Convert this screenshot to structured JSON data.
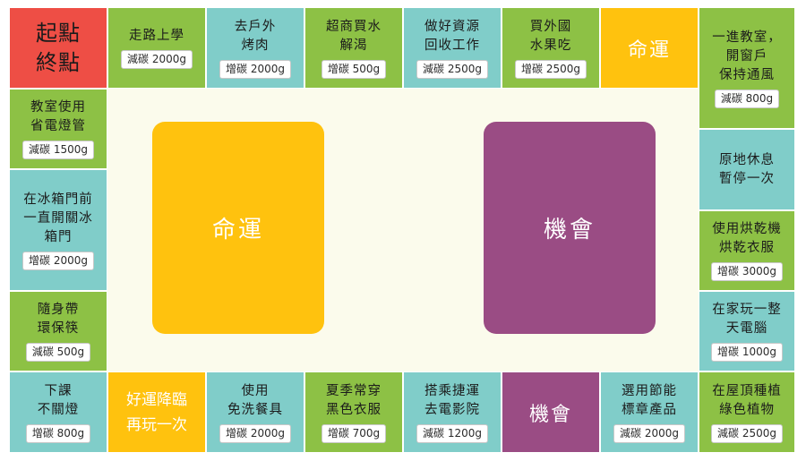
{
  "start_corner": "起點\n終點",
  "top_row": [
    {
      "label": "走路上學",
      "badge": "減碳 2000g"
    },
    {
      "label": "去戶外\n烤肉",
      "badge": "增碳 2000g"
    },
    {
      "label": "超商買水\n解渴",
      "badge": "增碳 500g"
    },
    {
      "label": "做好資源\n回收工作",
      "badge": "減碳 2500g"
    },
    {
      "label": "買外國\n水果吃",
      "badge": "增碳 2500g"
    },
    {
      "label": "命運"
    }
  ],
  "top_right_corner": {
    "label": "一進教室，\n開窗戶\n保持通風",
    "badge": "減碳 800g"
  },
  "right_col": [
    {
      "label": "原地休息\n暫停一次"
    },
    {
      "label": "使用烘乾機\n烘乾衣服",
      "badge": "增碳 3000g"
    },
    {
      "label": "在家玩一整\n天電腦",
      "badge": "增碳 1000g"
    }
  ],
  "bottom_right_corner": {
    "label": "在屋頂種植\n綠色植物",
    "badge": "減碳 2500g"
  },
  "bottom_row": [
    {
      "label": "選用節能\n標章產品",
      "badge": "減碳 2000g"
    },
    {
      "label": "機會"
    },
    {
      "label": "搭乘捷運\n去電影院",
      "badge": "減碳 1200g"
    },
    {
      "label": "夏季常穿\n黑色衣服",
      "badge": "增碳 700g"
    },
    {
      "label": "使用\n免洗餐具",
      "badge": "增碳 2000g"
    },
    {
      "label": "好運降臨\n再玩一次"
    }
  ],
  "bottom_left_corner": {
    "label": "下課\n不關燈",
    "badge": "增碳 800g"
  },
  "left_col": [
    {
      "label": "教室使用\n省電燈管",
      "badge": "減碳 1500g"
    },
    {
      "label": "在冰箱門前\n一直開關冰\n箱門",
      "badge": "增碳 2000g"
    },
    {
      "label": "隨身帶\n環保筷",
      "badge": "減碳 500g"
    }
  ],
  "center": {
    "fate_card": "命運",
    "chance_card": "機會"
  },
  "colors": {
    "green": "#8dc145",
    "teal": "#80cdc9",
    "yellow": "#ffc20e",
    "purple": "#9a4c84",
    "red": "#ee4e45",
    "board": "#fbfbec"
  }
}
